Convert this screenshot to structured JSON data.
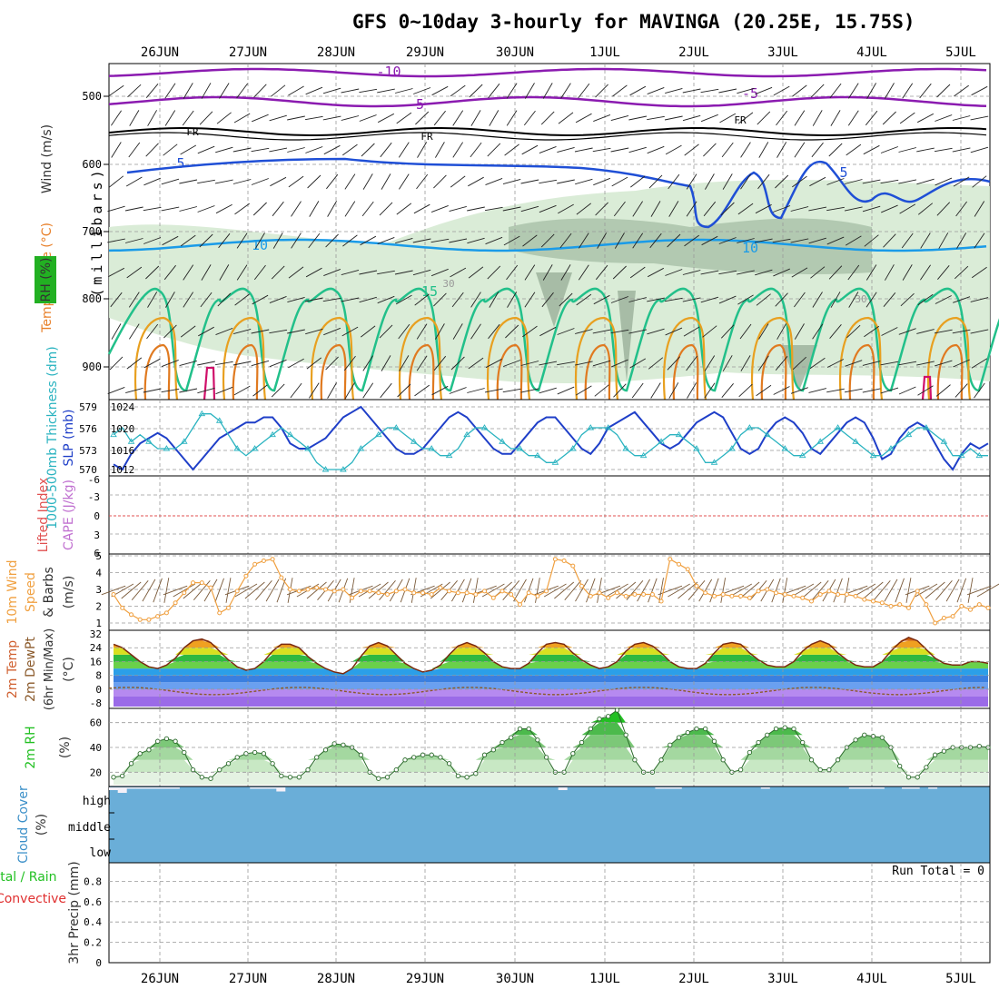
{
  "title": "GFS 0~10day 3-hourly for MAVINGA (20.25E, 15.75S)",
  "dates": [
    "26JUN",
    "27JUN",
    "28JUN",
    "29JUN",
    "30JUN",
    "1JUL",
    "2JUL",
    "3JUL",
    "4JUL",
    "5JUL"
  ],
  "colors": {
    "frame": "#000000",
    "grid": "#999999",
    "minus10": "#8b1bb0",
    "minus5": "#8b1bb0",
    "freezing": "#000000",
    "plus5": "#1f4fd6",
    "plus10": "#1a9be8",
    "plus15": "#22c08a",
    "plus20": "#e8a020",
    "plus25": "#e07a20",
    "plus30": "#d0106a",
    "rh_fill": "#d6ead3",
    "slp": "#1f3fc8",
    "thickness": "#2ab3c0",
    "lifted": "#e05050",
    "wind10m": "#f0a040",
    "barbs": "#7a5a3a",
    "rh2m": "#22c022",
    "cloud": "#6aaed8",
    "cloud_clear": "#f4f0f8"
  },
  "panels": {
    "upper": {
      "y_label": "(millibars)",
      "side_labels": [
        "Wind (m/s)",
        "Temperature (°C)",
        "RH (%)"
      ],
      "y_ticks": [
        "500",
        "600",
        "700",
        "800",
        "900"
      ],
      "contour_labels": [
        "-10",
        "-5",
        "FR",
        "FR",
        "FR",
        "-5",
        "-5",
        "5",
        "5",
        "10",
        "10",
        "15",
        "30",
        "30"
      ]
    },
    "slp": {
      "side_labels": [
        "1000-500mb Thickness (dm)",
        "SLP (mb)"
      ],
      "left_ticks": [
        "579",
        "576",
        "573",
        "570"
      ],
      "right_ticks": [
        "1024",
        "1020",
        "1016",
        "1012"
      ]
    },
    "cape": {
      "side_labels": [
        "Lifted Index",
        "CAPE (J/kg)"
      ],
      "left_ticks": [
        "-6",
        "-3",
        "0",
        "3",
        "6"
      ]
    },
    "wind10m": {
      "side_labels": [
        "10m Wind",
        "Speed",
        "& Barbs",
        "(m/s)"
      ],
      "y_ticks": [
        "5",
        "4",
        "3",
        "2",
        "1"
      ]
    },
    "temp2m": {
      "side_labels": [
        "2m Temp",
        "2m DewPt",
        "(6hr Min/Max)",
        "(°C)"
      ],
      "y_ticks": [
        "32",
        "24",
        "16",
        "8",
        "0",
        "-8"
      ]
    },
    "rh2m": {
      "side_labels": [
        "2m RH",
        "(%)"
      ],
      "y_ticks": [
        "60",
        "40",
        "20"
      ]
    },
    "cloud": {
      "side_labels": [
        "Cloud Cover",
        "(%)"
      ],
      "levels": [
        "high",
        "middle",
        "low"
      ]
    },
    "precip": {
      "side_labels": [
        "Total / Rain",
        "Convective",
        "3hr Precip (mm)"
      ],
      "y_ticks": [
        "0.8",
        "0.6",
        "0.4",
        "0.2",
        "0"
      ],
      "run_total": "Run Total = 0"
    }
  },
  "chart_data": [
    {
      "type": "line",
      "name": "SLP",
      "ylabel": "SLP (mb)",
      "ylim": [
        1010,
        1025
      ],
      "values": [
        1013,
        1012,
        1015,
        1017,
        1018,
        1019,
        1018,
        1016,
        1014,
        1012,
        1014,
        1016,
        1018,
        1019,
        1020,
        1021,
        1021,
        1022,
        1022,
        1020,
        1017,
        1016,
        1016,
        1017,
        1018,
        1020,
        1022,
        1023,
        1024,
        1022,
        1020,
        1018,
        1016,
        1015,
        1015,
        1016,
        1018,
        1020,
        1022,
        1023,
        1022,
        1020,
        1018,
        1016,
        1015,
        1015,
        1017,
        1019,
        1021,
        1022,
        1022,
        1020,
        1018,
        1016,
        1015,
        1017,
        1020,
        1021,
        1022,
        1023,
        1021,
        1019,
        1017,
        1016,
        1017,
        1019,
        1021,
        1022,
        1023,
        1022,
        1019,
        1016,
        1015,
        1016,
        1019,
        1021,
        1022,
        1021,
        1019,
        1016,
        1015,
        1017,
        1019,
        1021,
        1022,
        1021,
        1018,
        1014,
        1015,
        1018,
        1020,
        1021,
        1020,
        1017,
        1014,
        1012,
        1015,
        1017,
        1016,
        1017
      ]
    },
    {
      "type": "line",
      "name": "1000-500mb Thickness",
      "ylabel": "Thickness (dm)",
      "ylim": [
        569,
        580
      ],
      "values": [
        575,
        576,
        574,
        575,
        574,
        573,
        573,
        573,
        574,
        576,
        578,
        578,
        577,
        575,
        573,
        572,
        573,
        574,
        575,
        576,
        575,
        574,
        573,
        571,
        570,
        570,
        570,
        571,
        573,
        574,
        575,
        576,
        576,
        575,
        574,
        573,
        573,
        572,
        572,
        573,
        575,
        576,
        576,
        575,
        574,
        573,
        573,
        572,
        572,
        571,
        571,
        572,
        573,
        575,
        576,
        576,
        576,
        575,
        573,
        572,
        572,
        573,
        574,
        575,
        575,
        574,
        573,
        571,
        571,
        572,
        573,
        575,
        576,
        576,
        575,
        574,
        573,
        572,
        572,
        573,
        574,
        575,
        576,
        575,
        574,
        573,
        572,
        572,
        573,
        574,
        575,
        576,
        576,
        575,
        574,
        572,
        572,
        573,
        572,
        572
      ]
    },
    {
      "type": "line",
      "name": "10m Wind Speed",
      "ylabel": "(m/s)",
      "ylim": [
        1,
        5
      ],
      "values": [
        2.7,
        1.9,
        1.5,
        1.2,
        1.2,
        1.4,
        1.6,
        2.2,
        2.8,
        3.4,
        3.4,
        3.1,
        1.6,
        1.9,
        2.9,
        3.8,
        4.5,
        4.7,
        4.8,
        3.7,
        3.0,
        2.9,
        3.0,
        3.1,
        3.0,
        2.9,
        3.0,
        2.5,
        2.9,
        2.9,
        2.8,
        2.7,
        2.9,
        3.0,
        2.8,
        2.8,
        2.7,
        3.1,
        2.9,
        2.8,
        2.8,
        2.7,
        2.9,
        2.5,
        2.9,
        2.7,
        2.1,
        2.8,
        2.6,
        2.9,
        4.8,
        4.7,
        4.4,
        3.2,
        2.6,
        2.8,
        2.5,
        2.8,
        2.6,
        2.7,
        2.7,
        2.7,
        2.3,
        4.8,
        4.5,
        4.2,
        3.2,
        2.8,
        2.6,
        2.7,
        2.6,
        2.6,
        2.5,
        2.9,
        3.0,
        2.8,
        2.7,
        2.6,
        2.5,
        2.3,
        2.7,
        2.9,
        2.7,
        2.7,
        2.6,
        2.4,
        2.3,
        2.2,
        2.0,
        2.1,
        1.9,
        2.9,
        2.1,
        1.0,
        1.3,
        1.4,
        2.0,
        1.8,
        2.1,
        1.9
      ]
    },
    {
      "type": "area",
      "name": "2m Temp",
      "ylabel": "(°C)",
      "ylim": [
        -10,
        34
      ],
      "values": [
        26,
        24,
        20,
        16,
        13,
        12,
        14,
        18,
        24,
        28,
        29,
        27,
        22,
        17,
        13,
        11,
        12,
        16,
        22,
        26,
        26,
        24,
        19,
        15,
        12,
        10,
        9,
        12,
        19,
        25,
        27,
        25,
        20,
        15,
        12,
        10,
        11,
        14,
        20,
        25,
        27,
        25,
        21,
        16,
        13,
        12,
        12,
        15,
        21,
        26,
        27,
        26,
        21,
        17,
        14,
        12,
        13,
        16,
        22,
        26,
        27,
        25,
        21,
        16,
        13,
        12,
        12,
        15,
        21,
        26,
        27,
        26,
        21,
        17,
        14,
        13,
        13,
        16,
        22,
        26,
        28,
        26,
        21,
        17,
        14,
        13,
        13,
        16,
        22,
        27,
        30,
        28,
        23,
        18,
        15,
        14,
        14,
        16,
        16,
        15
      ]
    },
    {
      "type": "area",
      "name": "2m RH",
      "ylabel": "(%)",
      "ylim": [
        10,
        70
      ],
      "values": [
        16,
        17,
        27,
        35,
        38,
        45,
        47,
        45,
        36,
        22,
        16,
        15,
        22,
        27,
        32,
        35,
        36,
        35,
        27,
        17,
        16,
        16,
        22,
        32,
        38,
        43,
        42,
        40,
        34,
        20,
        15,
        16,
        22,
        30,
        32,
        34,
        34,
        32,
        27,
        17,
        16,
        19,
        34,
        38,
        44,
        48,
        55,
        55,
        46,
        32,
        20,
        20,
        35,
        44,
        55,
        63,
        65,
        70,
        50,
        30,
        20,
        20,
        30,
        42,
        48,
        52,
        55,
        55,
        45,
        30,
        20,
        22,
        36,
        44,
        50,
        55,
        56,
        55,
        44,
        30,
        22,
        22,
        30,
        40,
        46,
        50,
        49,
        48,
        40,
        25,
        16,
        16,
        24,
        34,
        37,
        40,
        40,
        40,
        41,
        40
      ]
    },
    {
      "type": "bar",
      "name": "Cloud Cover high",
      "ylabel": "(%)",
      "ylim": [
        0,
        100
      ],
      "values": [
        10,
        20,
        5,
        5,
        5,
        5,
        5,
        5,
        0,
        0,
        0,
        0,
        0,
        0,
        0,
        0,
        5,
        5,
        5,
        15,
        0,
        0,
        0,
        0,
        0,
        0,
        0,
        0,
        0,
        0,
        0,
        0,
        0,
        0,
        0,
        0,
        0,
        0,
        0,
        0,
        0,
        0,
        0,
        0,
        0,
        0,
        0,
        0,
        0,
        0,
        0,
        10,
        0,
        0,
        0,
        0,
        0,
        0,
        0,
        0,
        0,
        0,
        5,
        5,
        5,
        0,
        0,
        0,
        0,
        0,
        0,
        0,
        0,
        0,
        5,
        0,
        0,
        0,
        0,
        0,
        0,
        0,
        0,
        0,
        5,
        5,
        5,
        5,
        0,
        0,
        5,
        5,
        0,
        5,
        0,
        0,
        0,
        0,
        0,
        0
      ]
    },
    {
      "type": "bar",
      "name": "3hr Precip",
      "ylabel": "3hr Precip (mm)",
      "ylim": [
        0,
        1
      ],
      "values": [
        0,
        0,
        0,
        0,
        0,
        0,
        0,
        0,
        0,
        0
      ]
    }
  ]
}
